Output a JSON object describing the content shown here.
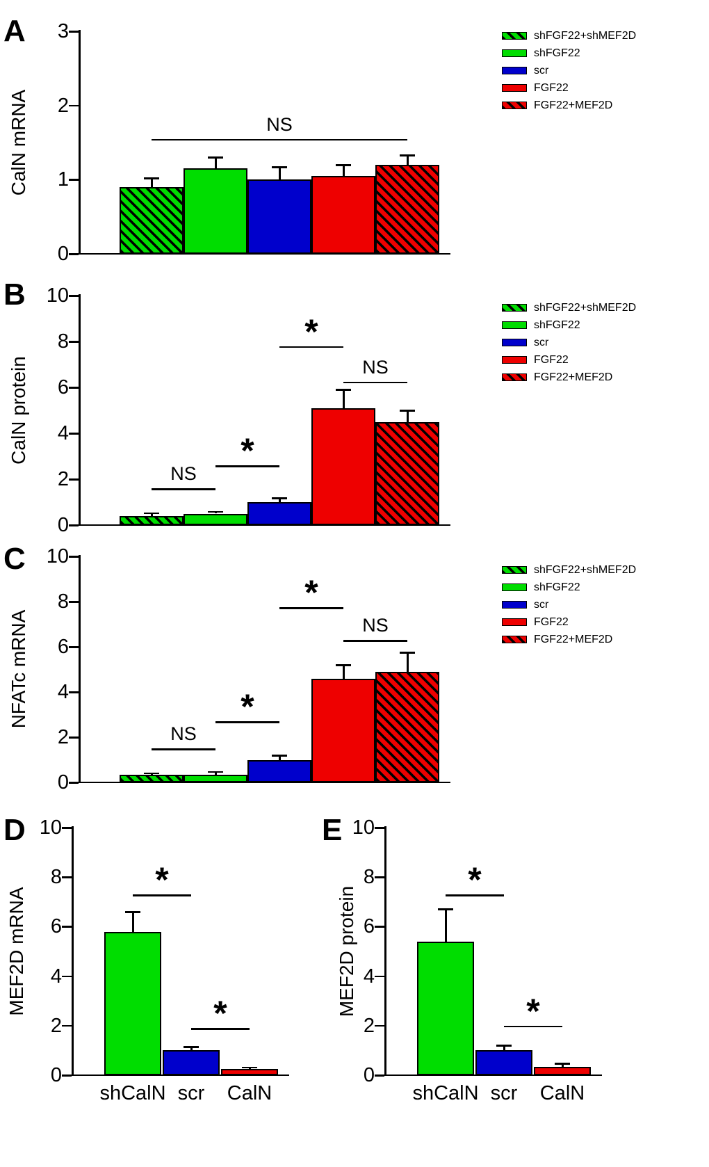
{
  "colors": {
    "green": "#00dd00",
    "blue": "#0000cc",
    "red": "#ee0000",
    "black": "#000000",
    "background": "#ffffff"
  },
  "legend_items": [
    {
      "label": "shFGF22+shMEF2D",
      "style": "green-hatch"
    },
    {
      "label": "shFGF22",
      "style": "green"
    },
    {
      "label": "scr",
      "style": "blue"
    },
    {
      "label": "FGF22",
      "style": "red"
    },
    {
      "label": "FGF22+MEF2D",
      "style": "red-hatch"
    }
  ],
  "chart_data": [
    {
      "id": "A",
      "panel_label": "A",
      "type": "bar",
      "title": "",
      "xlabel": "",
      "ylabel": "CalN mRNA",
      "ylim": [
        0,
        3
      ],
      "yticks": [
        0,
        1,
        2,
        3
      ],
      "categories": [
        "shFGF22+shMEF2D",
        "shFGF22",
        "scr",
        "FGF22",
        "FGF22+MEF2D"
      ],
      "values": [
        0.9,
        1.15,
        1.0,
        1.05,
        1.2
      ],
      "errors": [
        0.12,
        0.15,
        0.17,
        0.15,
        0.13
      ],
      "styles": [
        "green-hatch",
        "green",
        "blue",
        "red",
        "red-hatch"
      ],
      "annotations": [
        {
          "label": "NS",
          "from": 0,
          "to": 4,
          "y": 1.55
        }
      ],
      "legend": true,
      "xlabels": false
    },
    {
      "id": "B",
      "panel_label": "B",
      "type": "bar",
      "title": "",
      "xlabel": "",
      "ylabel": "CalN protein",
      "ylim": [
        0,
        10
      ],
      "yticks": [
        0,
        2,
        4,
        6,
        8,
        10
      ],
      "categories": [
        "shFGF22+shMEF2D",
        "shFGF22",
        "scr",
        "FGF22",
        "FGF22+MEF2D"
      ],
      "values": [
        0.4,
        0.5,
        1.0,
        5.1,
        4.5
      ],
      "errors": [
        0.12,
        0.08,
        0.18,
        0.8,
        0.5
      ],
      "styles": [
        "green-hatch",
        "green",
        "blue",
        "red",
        "red-hatch"
      ],
      "annotations": [
        {
          "label": "NS",
          "from": 0,
          "to": 1,
          "y": 1.6
        },
        {
          "label": "*",
          "from": 1,
          "to": 2,
          "y": 2.6
        },
        {
          "label": "*",
          "from": 2,
          "to": 3,
          "y": 7.8
        },
        {
          "label": "NS",
          "from": 3,
          "to": 4,
          "y": 6.25
        }
      ],
      "legend": true,
      "xlabels": false
    },
    {
      "id": "C",
      "panel_label": "C",
      "type": "bar",
      "title": "",
      "xlabel": "",
      "ylabel": "NFATc mRNA",
      "ylim": [
        0,
        10
      ],
      "yticks": [
        0,
        2,
        4,
        6,
        8,
        10
      ],
      "categories": [
        "shFGF22+shMEF2D",
        "shFGF22",
        "scr",
        "FGF22",
        "FGF22+MEF2D"
      ],
      "values": [
        0.35,
        0.35,
        1.0,
        4.6,
        4.9
      ],
      "errors": [
        0.06,
        0.12,
        0.2,
        0.6,
        0.85
      ],
      "styles": [
        "green-hatch",
        "green",
        "blue",
        "red",
        "red-hatch"
      ],
      "annotations": [
        {
          "label": "NS",
          "from": 0,
          "to": 1,
          "y": 1.5
        },
        {
          "label": "*",
          "from": 1,
          "to": 2,
          "y": 2.7
        },
        {
          "label": "*",
          "from": 2,
          "to": 3,
          "y": 7.75
        },
        {
          "label": "NS",
          "from": 3,
          "to": 4,
          "y": 6.3
        }
      ],
      "legend": true,
      "xlabels": false
    },
    {
      "id": "D",
      "panel_label": "D",
      "type": "bar",
      "title": "",
      "xlabel": "",
      "ylabel": "MEF2D mRNA",
      "ylim": [
        0,
        10
      ],
      "yticks": [
        0,
        2,
        4,
        6,
        8,
        10
      ],
      "categories": [
        "shCalN",
        "scr",
        "CalN"
      ],
      "values": [
        5.8,
        1.0,
        0.25
      ],
      "errors": [
        0.8,
        0.15,
        0.07
      ],
      "styles": [
        "green",
        "blue",
        "red"
      ],
      "annotations": [
        {
          "label": "*",
          "from": 0,
          "to": 1,
          "y": 7.3
        },
        {
          "label": "*",
          "from": 1,
          "to": 2,
          "y": 1.9
        }
      ],
      "legend": false,
      "xlabels": true
    },
    {
      "id": "E",
      "panel_label": "E",
      "type": "bar",
      "title": "",
      "xlabel": "",
      "ylabel": "MEF2D protein",
      "ylim": [
        0,
        10
      ],
      "yticks": [
        0,
        2,
        4,
        6,
        8,
        10
      ],
      "categories": [
        "shCalN",
        "scr",
        "CalN"
      ],
      "values": [
        5.4,
        1.0,
        0.35
      ],
      "errors": [
        1.3,
        0.2,
        0.12
      ],
      "styles": [
        "green",
        "blue",
        "red"
      ],
      "annotations": [
        {
          "label": "*",
          "from": 0,
          "to": 1,
          "y": 7.3
        },
        {
          "label": "*",
          "from": 1,
          "to": 2,
          "y": 2.0
        }
      ],
      "legend": false,
      "xlabels": true
    }
  ]
}
